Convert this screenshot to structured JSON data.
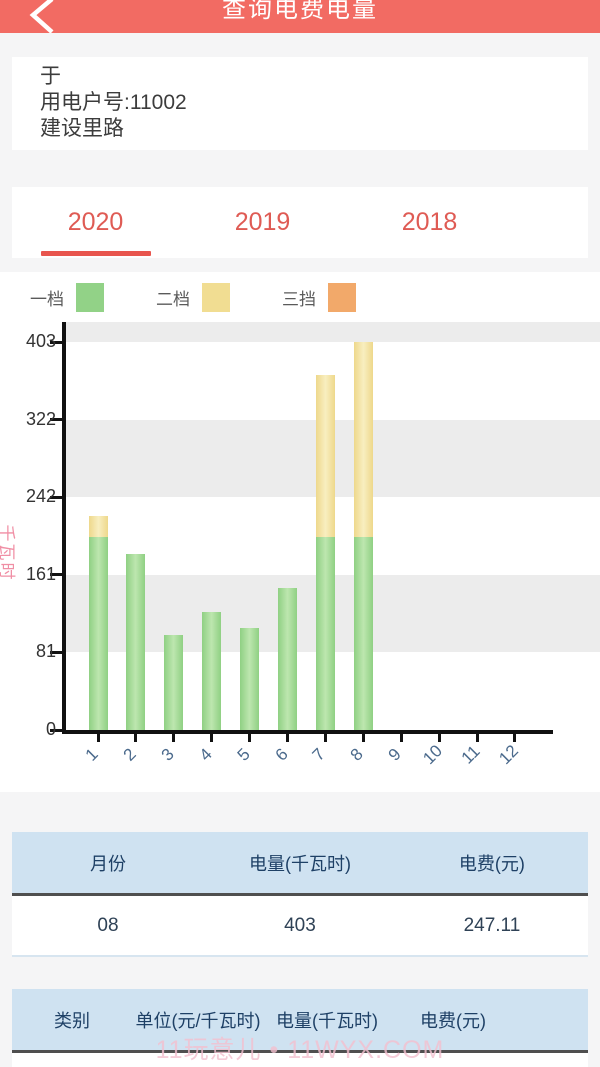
{
  "header": {
    "title": "查询电费电量",
    "color": "#f26b63"
  },
  "account": {
    "name": "于",
    "number": "用电户号:11002",
    "address": "建设里路"
  },
  "tabs": [
    {
      "label": "2020",
      "active": true
    },
    {
      "label": "2019",
      "active": false
    },
    {
      "label": "2018",
      "active": false
    }
  ],
  "legend": [
    {
      "label": "一档",
      "color": "#92d287"
    },
    {
      "label": "二档",
      "color": "#f1dd92"
    },
    {
      "label": "三挡",
      "color": "#f2a96a"
    }
  ],
  "chart_data": {
    "type": "bar",
    "stacked": true,
    "title": "",
    "xlabel": "",
    "ylabel": "千瓦时",
    "categories": [
      "1",
      "2",
      "3",
      "4",
      "5",
      "6",
      "7",
      "8",
      "9",
      "10",
      "11",
      "12"
    ],
    "yticks": [
      0,
      81,
      161,
      242,
      322,
      403
    ],
    "ylim": [
      0,
      403
    ],
    "grid": "alternating-horizontal-bands",
    "band_color": "#ececec",
    "legend_position": "top-left",
    "series": [
      {
        "name": "一档",
        "color_edge": "#8fd083",
        "color_mid": "#bde6af",
        "values": [
          200,
          183,
          99,
          123,
          106,
          147,
          200,
          200,
          0,
          0,
          0,
          0
        ]
      },
      {
        "name": "二档",
        "color_edge": "#eed88b",
        "color_mid": "#f8eec0",
        "values": [
          22,
          0,
          0,
          0,
          0,
          0,
          169,
          203,
          0,
          0,
          0,
          0
        ]
      },
      {
        "name": "三挡",
        "color_edge": "#f0a86b",
        "color_mid": "#f6c398",
        "values": [
          0,
          0,
          0,
          0,
          0,
          0,
          0,
          0,
          0,
          0,
          0,
          0
        ]
      }
    ]
  },
  "monthly_table": {
    "headers": [
      "月份",
      "电量(千瓦时)",
      "电费(元)"
    ],
    "rows": [
      [
        "08",
        "403",
        "247.11"
      ]
    ]
  },
  "detail_table": {
    "headers": [
      "类别",
      "单位(元/千瓦时)",
      "电量(千瓦时)",
      "电费(元)"
    ]
  },
  "watermark": "11玩意儿 • 11WYX.COM"
}
